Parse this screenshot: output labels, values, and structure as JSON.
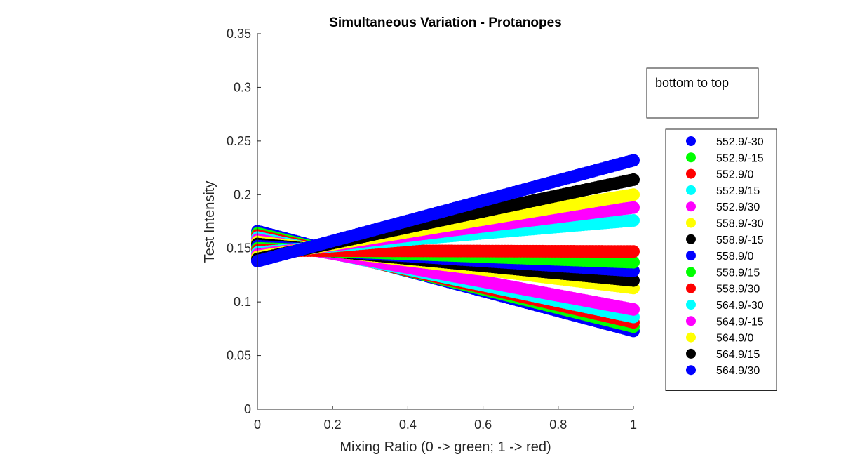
{
  "chart_data": {
    "type": "scatter",
    "title": "Simultaneous Variation - Protanopes",
    "xlabel": "Mixing Ratio (0 -> green; 1 -> red)",
    "ylabel": "Test Intensity",
    "xlim": [
      0,
      1
    ],
    "ylim": [
      0,
      0.35
    ],
    "xticks": [
      "0",
      "0.2",
      "0.4",
      "0.6",
      "0.8",
      "1"
    ],
    "yticks": [
      "0",
      "0.05",
      "0.1",
      "0.15",
      "0.2",
      "0.25",
      "0.3",
      "0.35"
    ],
    "grid": false,
    "marker": "filled-circle",
    "legend_title_box": "bottom to top",
    "legend_placement": "right",
    "series": [
      {
        "name": "552.9/-30",
        "color": "#0000ff",
        "y_at_0": 0.166,
        "y_at_1": 0.073
      },
      {
        "name": "552.9/-15",
        "color": "#00ff00",
        "y_at_0": 0.164,
        "y_at_1": 0.077
      },
      {
        "name": "552.9/0",
        "color": "#ff0000",
        "y_at_0": 0.162,
        "y_at_1": 0.081
      },
      {
        "name": "552.9/15",
        "color": "#00ffff",
        "y_at_0": 0.16,
        "y_at_1": 0.086
      },
      {
        "name": "552.9/30",
        "color": "#ff00ff",
        "y_at_0": 0.158,
        "y_at_1": 0.093
      },
      {
        "name": "558.9/-30",
        "color": "#ffff00",
        "y_at_0": 0.156,
        "y_at_1": 0.113
      },
      {
        "name": "558.9/-15",
        "color": "#000000",
        "y_at_0": 0.154,
        "y_at_1": 0.12
      },
      {
        "name": "558.9/0",
        "color": "#0000ff",
        "y_at_0": 0.152,
        "y_at_1": 0.129
      },
      {
        "name": "558.9/15",
        "color": "#00ff00",
        "y_at_0": 0.15,
        "y_at_1": 0.137
      },
      {
        "name": "558.9/30",
        "color": "#ff0000",
        "y_at_0": 0.148,
        "y_at_1": 0.147
      },
      {
        "name": "564.9/-30",
        "color": "#00ffff",
        "y_at_0": 0.146,
        "y_at_1": 0.176
      },
      {
        "name": "564.9/-15",
        "color": "#ff00ff",
        "y_at_0": 0.144,
        "y_at_1": 0.188
      },
      {
        "name": "564.9/0",
        "color": "#ffff00",
        "y_at_0": 0.142,
        "y_at_1": 0.2
      },
      {
        "name": "564.9/15",
        "color": "#000000",
        "y_at_0": 0.14,
        "y_at_1": 0.214
      },
      {
        "name": "564.9/30",
        "color": "#0000ff",
        "y_at_0": 0.138,
        "y_at_1": 0.232
      }
    ]
  }
}
